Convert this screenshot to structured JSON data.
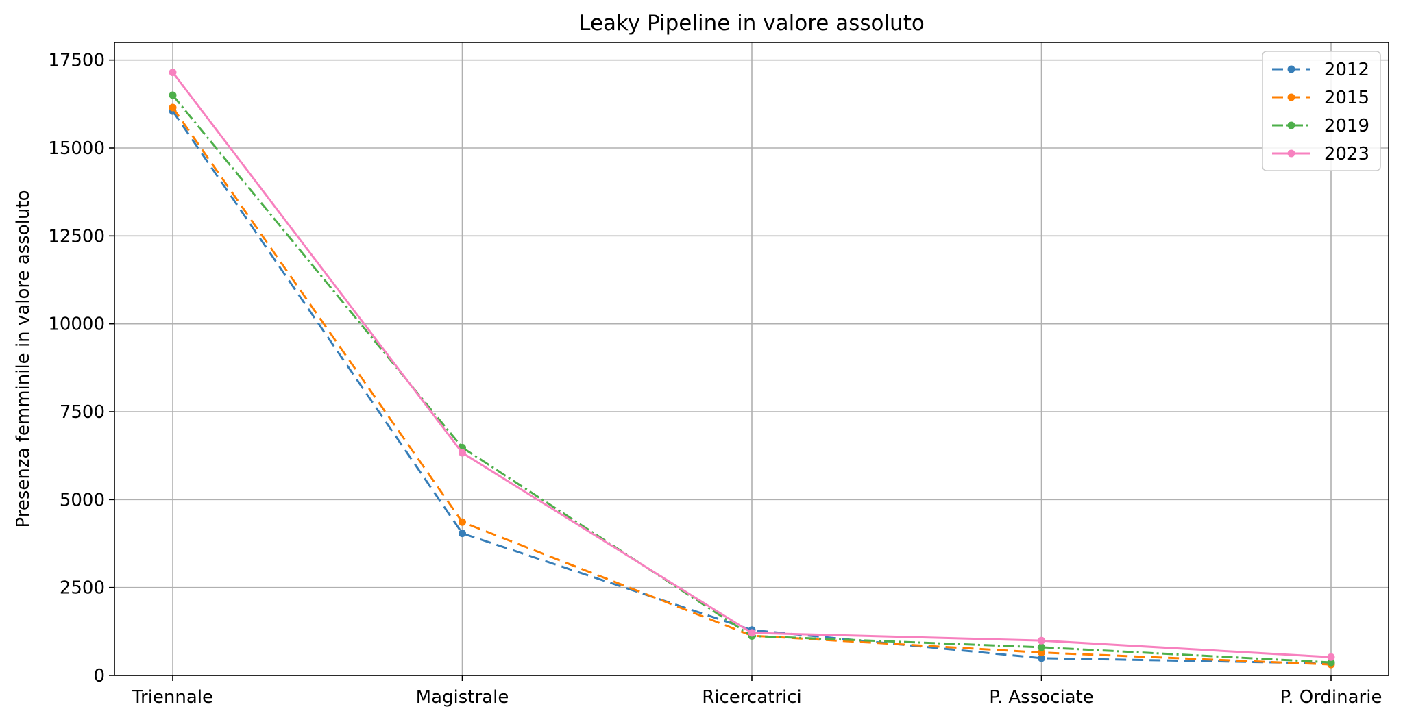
{
  "chart_data": {
    "type": "line",
    "title": "Leaky Pipeline in valore assoluto",
    "xlabel": "",
    "ylabel": "Presenza femminile in valore assoluto",
    "categories": [
      "Triennale",
      "Magistrale",
      "Ricercatrici",
      "P. Associate",
      "P. Ordinarie"
    ],
    "ylim": [
      0,
      18000
    ],
    "yticks": [
      0,
      2500,
      5000,
      7500,
      10000,
      12500,
      15000,
      17500
    ],
    "grid": true,
    "legend_position": "top-right",
    "series": [
      {
        "name": "2012",
        "values": [
          16050,
          4040,
          1290,
          490,
          340
        ],
        "color": "#377eb8",
        "dash": "16,9"
      },
      {
        "name": "2015",
        "values": [
          16150,
          4360,
          1130,
          650,
          310
        ],
        "color": "#ff7f00",
        "dash": "16,9"
      },
      {
        "name": "2019",
        "values": [
          16500,
          6480,
          1120,
          800,
          370
        ],
        "color": "#4daf4a",
        "dash": "16,5,3,5"
      },
      {
        "name": "2023",
        "values": [
          17150,
          6330,
          1210,
          990,
          520
        ],
        "color": "#f781bf",
        "dash": ""
      }
    ]
  }
}
